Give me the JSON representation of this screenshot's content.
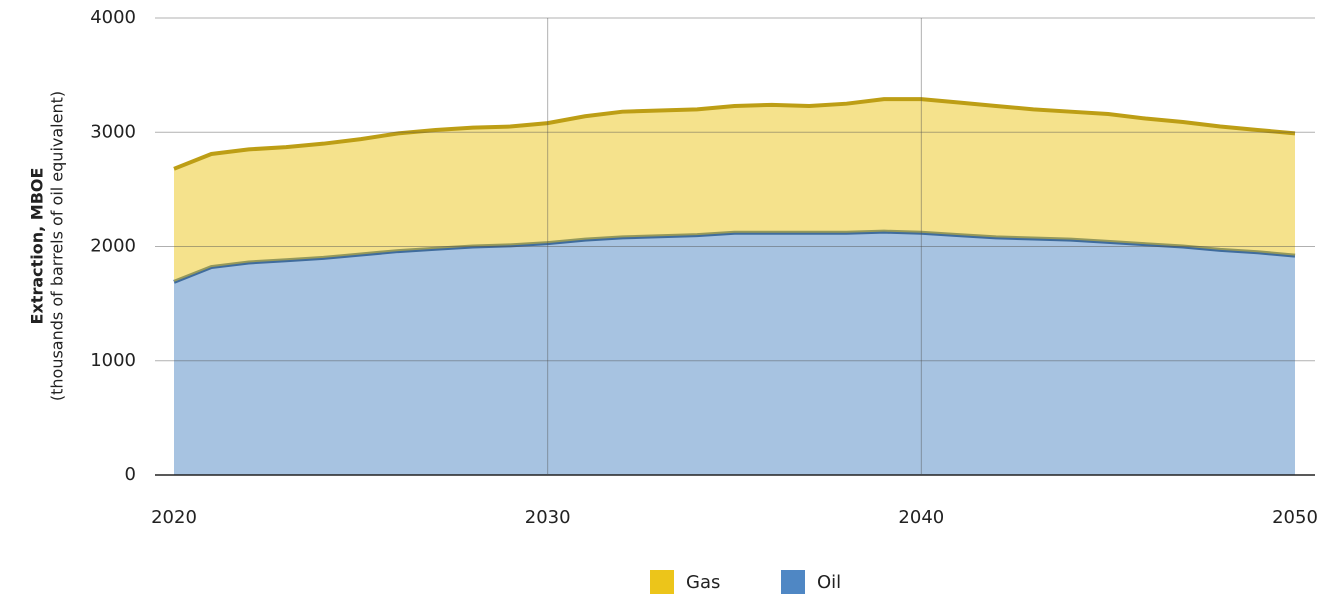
{
  "chart_data": {
    "type": "stacked_area",
    "y_label": "Extraction, MBOE",
    "y_sublabel": "(thousands of barrels of oil equivalent)",
    "x": [
      2020,
      2021,
      2022,
      2023,
      2024,
      2025,
      2026,
      2027,
      2028,
      2029,
      2030,
      2031,
      2032,
      2033,
      2034,
      2035,
      2036,
      2037,
      2038,
      2039,
      2040,
      2041,
      2042,
      2043,
      2044,
      2045,
      2046,
      2047,
      2048,
      2049,
      2050
    ],
    "series": [
      {
        "name": "Gas",
        "color": "#ecc51a",
        "values": [
          990,
          990,
          990,
          990,
          1000,
          1010,
          1030,
          1040,
          1040,
          1040,
          1050,
          1080,
          1100,
          1100,
          1100,
          1110,
          1120,
          1110,
          1130,
          1160,
          1170,
          1160,
          1150,
          1130,
          1120,
          1120,
          1100,
          1090,
          1080,
          1070,
          1070
        ]
      },
      {
        "name": "Oil",
        "color": "#4f87c4",
        "values": [
          1690,
          1820,
          1860,
          1880,
          1900,
          1930,
          1960,
          1980,
          2000,
          2010,
          2030,
          2060,
          2080,
          2090,
          2100,
          2120,
          2120,
          2120,
          2120,
          2130,
          2120,
          2100,
          2080,
          2070,
          2060,
          2040,
          2020,
          2000,
          1970,
          1950,
          1920
        ]
      }
    ],
    "xlim": [
      2020,
      2050
    ],
    "xticks": [
      2020,
      2030,
      2040,
      2050
    ],
    "ylim": [
      0,
      4000
    ],
    "yticks": [
      0,
      1000,
      2000,
      3000,
      4000
    ],
    "grid": true,
    "legend": "bottom"
  }
}
